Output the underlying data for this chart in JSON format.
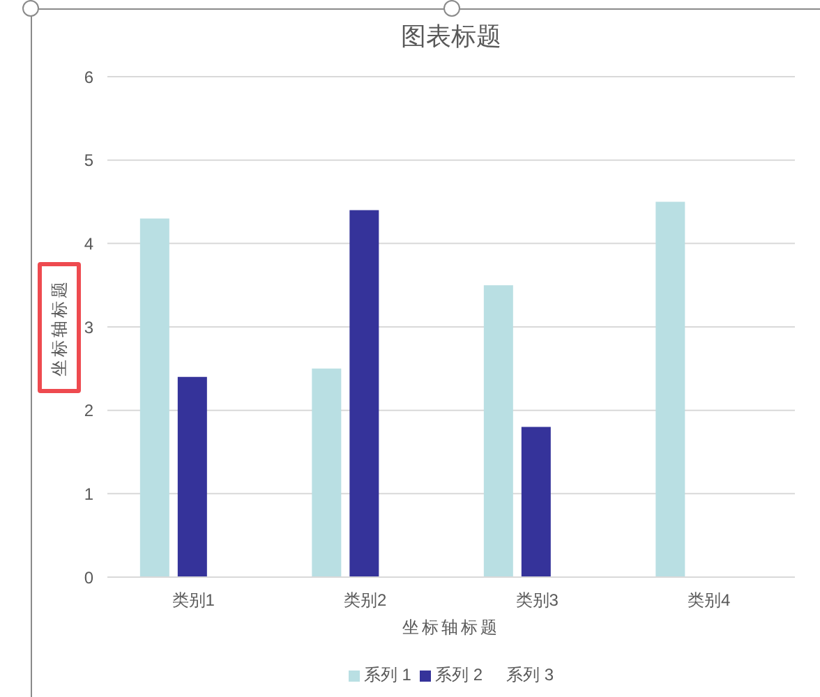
{
  "chart_data": {
    "type": "bar",
    "title": "图表标题",
    "xlabel": "坐标轴标题",
    "ylabel": "坐标轴标题",
    "categories": [
      "类别1",
      "类别2",
      "类别3",
      "类别4"
    ],
    "series": [
      {
        "name": "系列 1",
        "color": "#b9dfe3",
        "values": [
          4.3,
          2.5,
          3.5,
          4.5
        ]
      },
      {
        "name": "系列 2",
        "color": "#35339a",
        "values": [
          2.4,
          4.4,
          1.8,
          null
        ]
      },
      {
        "name": "系列 3",
        "values": [
          null,
          null,
          null,
          null
        ]
      }
    ],
    "ylim": [
      0,
      6
    ],
    "yticks": [
      0,
      1,
      2,
      3,
      4,
      5,
      6
    ],
    "grid": "y",
    "legend": "bottom"
  }
}
